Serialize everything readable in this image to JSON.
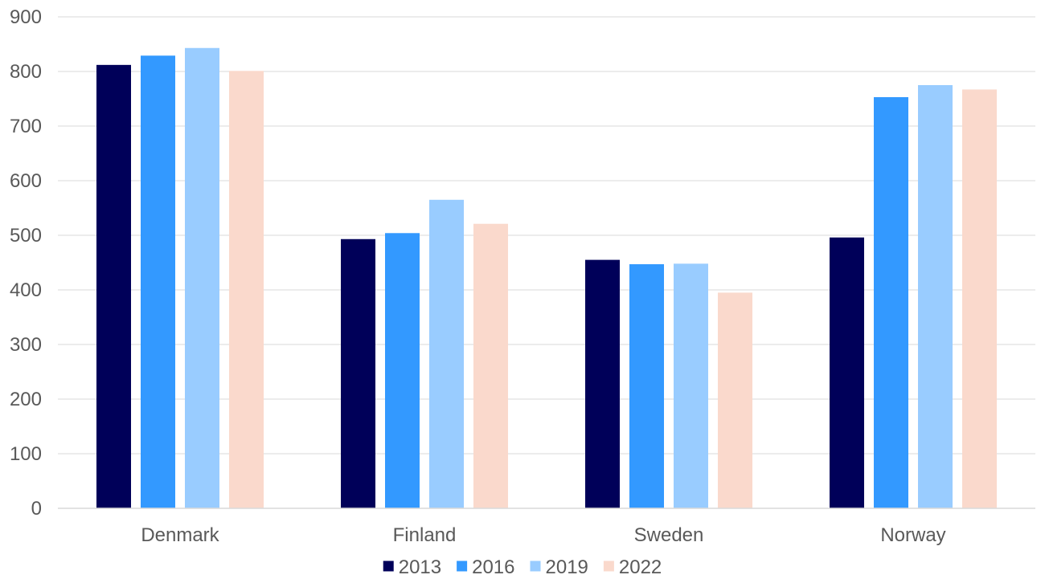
{
  "chart_data": {
    "type": "bar",
    "title": "",
    "xlabel": "",
    "ylabel": "",
    "categories": [
      "Denmark",
      "Finland",
      "Sweden",
      "Norway"
    ],
    "series": [
      {
        "name": "2013",
        "color": "#000059",
        "values": [
          812,
          493,
          455,
          496
        ]
      },
      {
        "name": "2016",
        "color": "#3399ff",
        "values": [
          829,
          504,
          447,
          753
        ]
      },
      {
        "name": "2019",
        "color": "#99ccff",
        "values": [
          843,
          565,
          448,
          775
        ]
      },
      {
        "name": "2022",
        "color": "#fad9cc",
        "values": [
          801,
          521,
          395,
          767
        ]
      }
    ],
    "ylim": [
      0,
      900
    ],
    "yticks": [
      0,
      100,
      200,
      300,
      400,
      500,
      600,
      700,
      800,
      900
    ],
    "grid": true,
    "legend_position": "bottom"
  }
}
